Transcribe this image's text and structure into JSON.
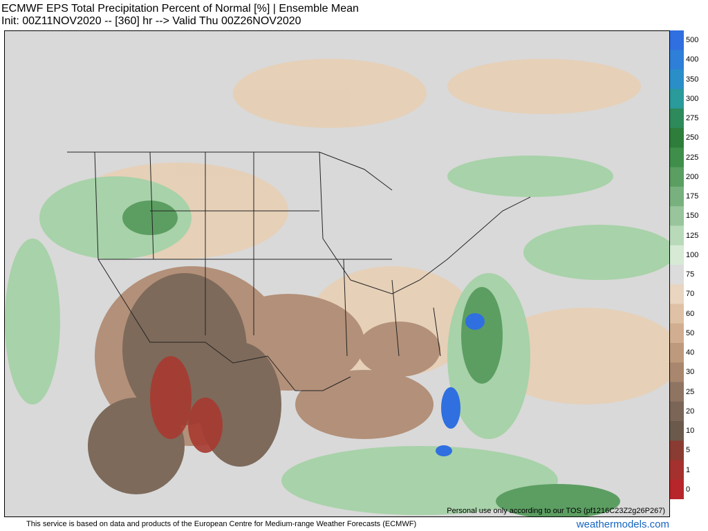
{
  "header": {
    "title": "ECMWF EPS Total Precipitation Percent of Normal [%] | Ensemble Mean",
    "subtitle": "Init: 00Z11NOV2020 -- [360] hr --> Valid Thu 00Z26NOV2020"
  },
  "map": {
    "tos_note": "Personal use only according to our TOS (pf1216C23Z2g26P267)"
  },
  "colorbar": {
    "ticks": [
      "500",
      "400",
      "350",
      "300",
      "275",
      "250",
      "225",
      "200",
      "175",
      "150",
      "125",
      "100",
      "75",
      "70",
      "60",
      "50",
      "40",
      "30",
      "25",
      "20",
      "10",
      "5",
      "1",
      "0"
    ],
    "colors": [
      "#2f6fe0",
      "#2d7fd8",
      "#2a8ec8",
      "#2a9a9a",
      "#2d8a5a",
      "#2e7d3a",
      "#3f8f4a",
      "#5a9e62",
      "#78b07e",
      "#98c59b",
      "#b8dab9",
      "#d6ead6",
      "#dcdcdc",
      "#e9d5c0",
      "#dfc2a5",
      "#d1ae8f",
      "#be9a7d",
      "#a8876e",
      "#8f7462",
      "#7a6556",
      "#6b5a4c",
      "#8a3c32",
      "#a4312d",
      "#b7262a"
    ]
  },
  "footer": {
    "attribution": "This service is based on data and products of the European Centre for Medium-range Weather Forecasts (ECMWF)",
    "brand": "weathermodels.com"
  }
}
